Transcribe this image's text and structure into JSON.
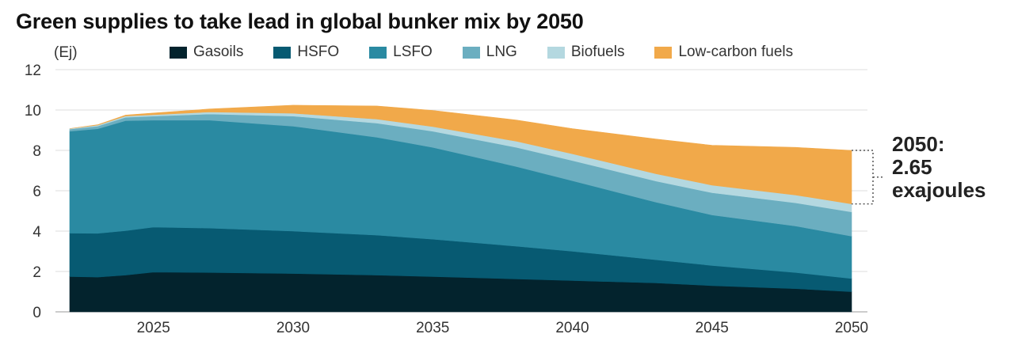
{
  "title": "Green supplies to take lead in global bunker mix by 2050",
  "unit_label": "(Ej)",
  "callout": {
    "line1": "2050:",
    "line2": "2.65",
    "line3": "exajoules"
  },
  "colors": {
    "Gasoils": "#03232d",
    "HSFO": "#075a72",
    "LSFO": "#2a8aa2",
    "LNG": "#6baec0",
    "Biofuels": "#b4d8e0",
    "Low-carbon fuels": "#f1a94a"
  },
  "chart_data": {
    "type": "area",
    "stacked": true,
    "title": "Green supplies to take lead in global bunker mix by 2050",
    "ylabel": "(Ej)",
    "ylim": [
      0,
      12
    ],
    "yticks": [
      0,
      2,
      4,
      6,
      8,
      10,
      12
    ],
    "xlim": [
      2022,
      2050
    ],
    "xticks": [
      2025,
      2030,
      2035,
      2040,
      2045,
      2050
    ],
    "grid": true,
    "legend_position": "top",
    "x": [
      2022,
      2023,
      2024,
      2025,
      2027,
      2030,
      2033,
      2035,
      2038,
      2040,
      2043,
      2045,
      2048,
      2050
    ],
    "series": [
      {
        "name": "Gasoils",
        "values": [
          1.75,
          1.72,
          1.82,
          1.97,
          1.95,
          1.9,
          1.82,
          1.75,
          1.63,
          1.55,
          1.43,
          1.3,
          1.15,
          1.0
        ]
      },
      {
        "name": "HSFO",
        "values": [
          2.15,
          2.17,
          2.2,
          2.23,
          2.2,
          2.1,
          1.98,
          1.85,
          1.62,
          1.45,
          1.15,
          1.0,
          0.8,
          0.65
        ]
      },
      {
        "name": "LSFO",
        "values": [
          5.05,
          5.18,
          5.45,
          5.3,
          5.35,
          5.2,
          4.85,
          4.55,
          3.95,
          3.5,
          2.85,
          2.5,
          2.3,
          2.1
        ]
      },
      {
        "name": "LNG",
        "values": [
          0.1,
          0.13,
          0.17,
          0.2,
          0.3,
          0.5,
          0.7,
          0.8,
          0.95,
          1.0,
          1.05,
          1.1,
          1.15,
          1.2
        ]
      },
      {
        "name": "Biofuels",
        "values": [
          0.03,
          0.05,
          0.06,
          0.07,
          0.1,
          0.14,
          0.2,
          0.23,
          0.3,
          0.33,
          0.36,
          0.38,
          0.39,
          0.4
        ]
      },
      {
        "name": "Low-carbon fuels",
        "values": [
          0.0,
          0.02,
          0.05,
          0.08,
          0.15,
          0.4,
          0.65,
          0.8,
          1.05,
          1.25,
          1.72,
          1.97,
          2.36,
          2.65
        ]
      }
    ]
  }
}
